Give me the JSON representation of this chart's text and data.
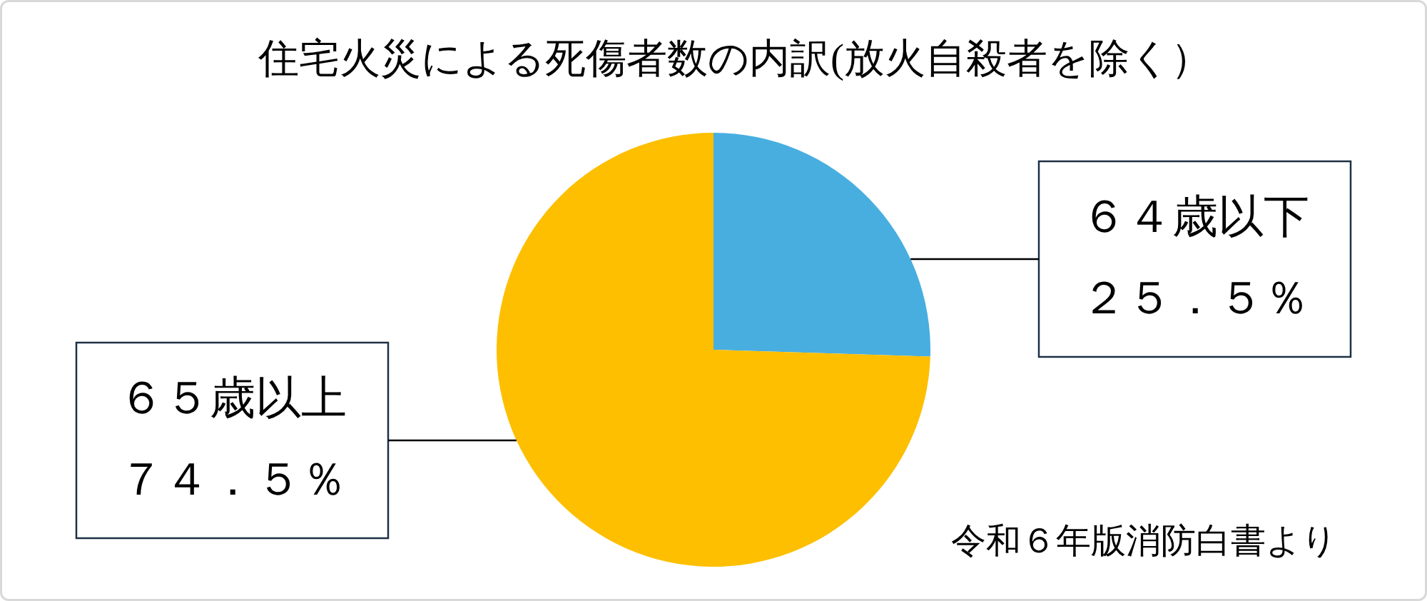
{
  "chart_data": {
    "type": "pie",
    "title": "住宅火災による死傷者数の内訳(放火自殺者を除く）",
    "categories": [
      "６４歳以下",
      "６５歳以上"
    ],
    "values": [
      25.5,
      74.5
    ],
    "colors": [
      "#48aee0",
      "#fdbf00"
    ],
    "value_labels": [
      "２５．５％",
      "７４．５％"
    ],
    "annotations": [
      "令和６年版消防白書より"
    ]
  }
}
